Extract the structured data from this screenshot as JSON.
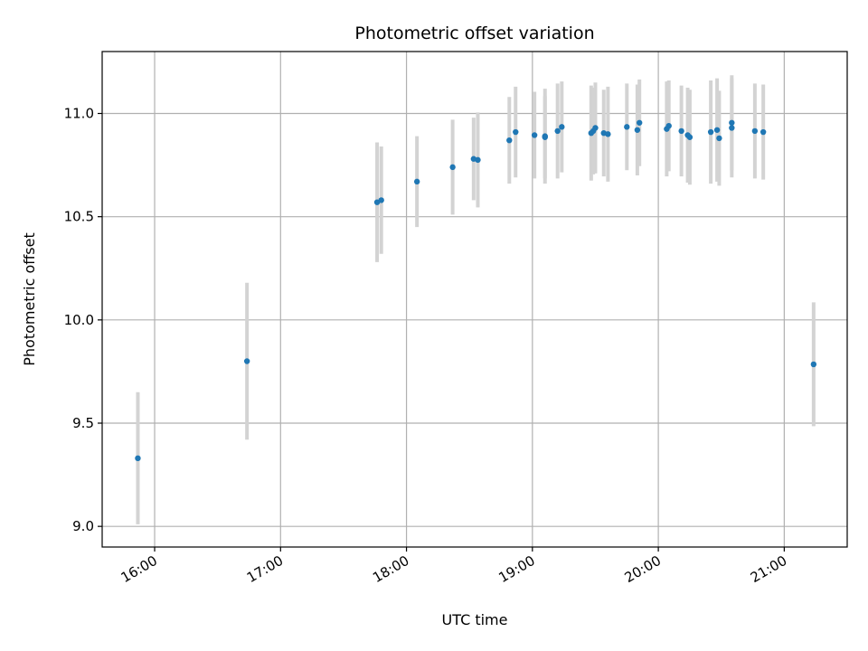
{
  "chart_data": {
    "type": "scatter",
    "title": "Photometric offset variation",
    "xlabel": "UTC time",
    "ylabel": "Photometric offset",
    "xlim": [
      "15:35",
      "21:30"
    ],
    "ylim": [
      8.9,
      11.3
    ],
    "x_ticks": [
      "16:00",
      "17:00",
      "18:00",
      "19:00",
      "20:00",
      "21:00"
    ],
    "y_ticks": [
      9.0,
      9.5,
      10.0,
      10.5,
      11.0
    ],
    "y_tick_labels": [
      "9.0",
      "9.5",
      "10.0",
      "10.5",
      "11.0"
    ],
    "grid": true,
    "points": [
      {
        "x": "15:52",
        "y": 9.33,
        "yerr": 0.32
      },
      {
        "x": "16:44",
        "y": 9.8,
        "yerr": 0.38
      },
      {
        "x": "17:46",
        "y": 10.57,
        "yerr": 0.29
      },
      {
        "x": "17:48",
        "y": 10.58,
        "yerr": 0.26
      },
      {
        "x": "18:05",
        "y": 10.67,
        "yerr": 0.22
      },
      {
        "x": "18:22",
        "y": 10.74,
        "yerr": 0.23
      },
      {
        "x": "18:32",
        "y": 10.78,
        "yerr": 0.2
      },
      {
        "x": "18:34",
        "y": 10.775,
        "yerr": 0.23
      },
      {
        "x": "18:49",
        "y": 10.87,
        "yerr": 0.21
      },
      {
        "x": "18:52",
        "y": 10.91,
        "yerr": 0.22
      },
      {
        "x": "19:01",
        "y": 10.895,
        "yerr": 0.21
      },
      {
        "x": "19:06",
        "y": 10.89,
        "yerr": 0.23
      },
      {
        "x": "19:06",
        "y": 10.885,
        "yerr": 0.2
      },
      {
        "x": "19:12",
        "y": 10.915,
        "yerr": 0.23
      },
      {
        "x": "19:14",
        "y": 10.935,
        "yerr": 0.22
      },
      {
        "x": "19:28",
        "y": 10.905,
        "yerr": 0.23
      },
      {
        "x": "19:29",
        "y": 10.915,
        "yerr": 0.21
      },
      {
        "x": "19:30",
        "y": 10.93,
        "yerr": 0.22
      },
      {
        "x": "19:34",
        "y": 10.905,
        "yerr": 0.21
      },
      {
        "x": "19:36",
        "y": 10.9,
        "yerr": 0.23
      },
      {
        "x": "19:45",
        "y": 10.935,
        "yerr": 0.21
      },
      {
        "x": "19:50",
        "y": 10.92,
        "yerr": 0.22
      },
      {
        "x": "19:51",
        "y": 10.955,
        "yerr": 0.21
      },
      {
        "x": "20:04",
        "y": 10.925,
        "yerr": 0.23
      },
      {
        "x": "20:05",
        "y": 10.94,
        "yerr": 0.22
      },
      {
        "x": "20:11",
        "y": 10.915,
        "yerr": 0.22
      },
      {
        "x": "20:14",
        "y": 10.895,
        "yerr": 0.23
      },
      {
        "x": "20:15",
        "y": 10.885,
        "yerr": 0.23
      },
      {
        "x": "20:25",
        "y": 10.91,
        "yerr": 0.25
      },
      {
        "x": "20:28",
        "y": 10.92,
        "yerr": 0.25
      },
      {
        "x": "20:29",
        "y": 10.88,
        "yerr": 0.23
      },
      {
        "x": "20:35",
        "y": 10.955,
        "yerr": 0.23
      },
      {
        "x": "20:35",
        "y": 10.93,
        "yerr": 0.24
      },
      {
        "x": "20:46",
        "y": 10.915,
        "yerr": 0.23
      },
      {
        "x": "20:50",
        "y": 10.91,
        "yerr": 0.23
      },
      {
        "x": "21:14",
        "y": 9.785,
        "yerr": 0.3
      }
    ],
    "marker_color": "#1f77b4",
    "errorbar_color": "#d3d3d3",
    "grid_color": "#b0b0b0"
  }
}
